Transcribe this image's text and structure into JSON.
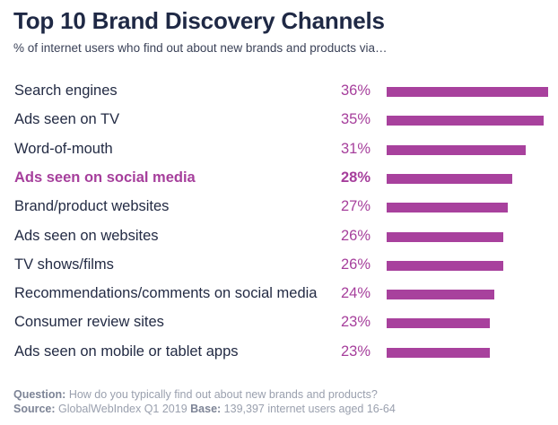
{
  "header": {
    "title": "Top 10 Brand Discovery Channels",
    "subtitle": "% of internet users who find out about new brands and products via…"
  },
  "footer": {
    "question_label": "Question:",
    "question_text": "How do you typically find out about new brands and products?",
    "source_label": "Source:",
    "source_text": "GlobalWebIndex Q1 2019",
    "base_label": "Base:",
    "base_text": "139,397 internet users aged 16-64"
  },
  "colors": {
    "accent": "#a8419d",
    "title": "#1f2945",
    "text": "#232b44",
    "footer": "#9aa0ae"
  },
  "chart_data": {
    "type": "bar",
    "orientation": "horizontal",
    "title": "Top 10 Brand Discovery Channels",
    "subtitle": "% of internet users who find out about new brands and products via…",
    "xlabel": "",
    "ylabel": "",
    "unit": "%",
    "xlim": [
      0,
      36
    ],
    "grid": false,
    "highlighted_category": "Ads seen on social media",
    "categories": [
      "Search engines",
      "Ads seen on TV",
      "Word-of-mouth",
      "Ads seen on social media",
      "Brand/product websites",
      "Ads seen on websites",
      "TV shows/films",
      "Recommendations/comments on social media",
      "Consumer review sites",
      "Ads seen on mobile or tablet apps"
    ],
    "values": [
      36,
      35,
      31,
      28,
      27,
      26,
      26,
      24,
      23,
      23
    ],
    "value_labels": [
      "36%",
      "35%",
      "31%",
      "28%",
      "27%",
      "26%",
      "26%",
      "24%",
      "23%",
      "23%"
    ]
  }
}
